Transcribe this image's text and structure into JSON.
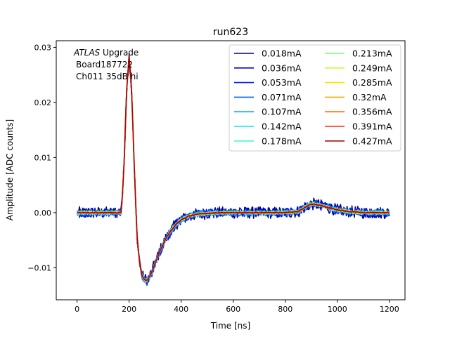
{
  "chart_data": {
    "type": "line",
    "title": "run623",
    "xlabel": "Time [ns]",
    "ylabel": "Amplitude [ADC counts]",
    "xlim": [
      -80,
      1260
    ],
    "ylim": [
      -0.0158,
      0.0312
    ],
    "xticks": [
      0,
      200,
      400,
      600,
      800,
      1000,
      1200
    ],
    "xtick_labels": [
      "0",
      "200",
      "400",
      "600",
      "800",
      "1000",
      "1200"
    ],
    "yticks": [
      -0.01,
      0.0,
      0.01,
      0.02,
      0.03
    ],
    "ytick_labels": [
      "−0.01",
      "0.00",
      "0.01",
      "0.02",
      "0.03"
    ],
    "grid": false,
    "legend_position": "top-right",
    "legend_columns": 2,
    "annotation": {
      "atlas": "ATLAS",
      "upgrade": " Upgrade",
      "line2": "Board187722",
      "line3": "Ch011 35dB hi"
    },
    "pulse_shape": {
      "x": [
        0,
        170,
        180,
        190,
        200,
        210,
        220,
        230,
        240,
        250,
        260,
        270,
        280,
        290,
        300,
        320,
        340,
        360,
        380,
        400,
        430,
        460,
        500,
        550,
        600,
        650,
        700,
        750,
        800,
        850,
        870,
        890,
        910,
        930,
        960,
        1000,
        1050,
        1100,
        1150,
        1200
      ],
      "y": [
        0.0,
        0.0,
        0.008,
        0.022,
        0.0285,
        0.022,
        0.008,
        -0.004,
        -0.009,
        -0.0115,
        -0.0122,
        -0.0122,
        -0.0115,
        -0.0105,
        -0.0092,
        -0.0068,
        -0.0048,
        -0.0033,
        -0.0021,
        -0.0013,
        -0.0006,
        -0.0003,
        -0.0001,
        0.0,
        0.0,
        0.0,
        0.0,
        0.0,
        0.0,
        0.0002,
        0.0008,
        0.0014,
        0.0016,
        0.0014,
        0.001,
        0.0005,
        0.0002,
        0.0,
        0.0,
        0.0
      ]
    },
    "series": [
      {
        "name": "0.018mA",
        "color": "#00007f",
        "noise": 0.0011,
        "scale": 0.99
      },
      {
        "name": "0.036mA",
        "color": "#0000d8",
        "noise": 0.0009,
        "scale": 1.0
      },
      {
        "name": "0.053mA",
        "color": "#0026ff",
        "noise": 0.0007,
        "scale": 1.0
      },
      {
        "name": "0.071mA",
        "color": "#0064ff",
        "noise": 0.0006,
        "scale": 1.0
      },
      {
        "name": "0.107mA",
        "color": "#00a4ff",
        "noise": 0.0005,
        "scale": 1.0
      },
      {
        "name": "0.142mA",
        "color": "#0de5f4",
        "noise": 0.0004,
        "scale": 1.0
      },
      {
        "name": "0.178mA",
        "color": "#35ffc4",
        "noise": 0.0003,
        "scale": 1.0
      },
      {
        "name": "0.213mA",
        "color": "#7dff7a",
        "noise": 0.0003,
        "scale": 1.0
      },
      {
        "name": "0.249mA",
        "color": "#c1ff36",
        "noise": 0.0002,
        "scale": 1.0
      },
      {
        "name": "0.285mA",
        "color": "#ffe500",
        "noise": 0.0002,
        "scale": 1.0
      },
      {
        "name": "0.32mA",
        "color": "#ffa700",
        "noise": 0.0002,
        "scale": 1.0
      },
      {
        "name": "0.356mA",
        "color": "#ff6800",
        "noise": 0.0001,
        "scale": 1.0
      },
      {
        "name": "0.391mA",
        "color": "#ff2900",
        "noise": 0.0001,
        "scale": 1.0
      },
      {
        "name": "0.427mA",
        "color": "#b20000",
        "noise": 0.0001,
        "scale": 1.0
      }
    ]
  }
}
